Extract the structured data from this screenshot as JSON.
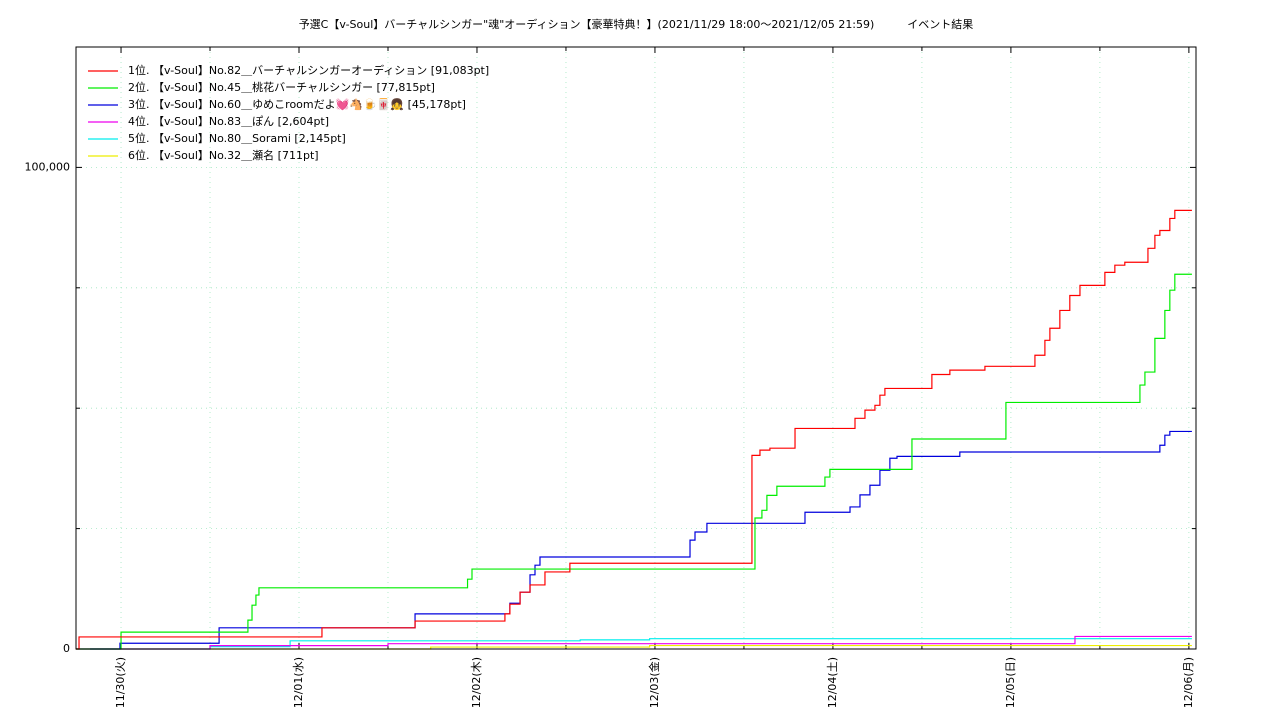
{
  "chart_data": {
    "type": "line",
    "step": true,
    "title": "予選C【v-Soul】バーチャルシンガー\"魂\"オーディション【豪華特典！】(2021/11/29 18:00～2021/12/05 21:59)　　　イベント結果",
    "xlim": [
      -0.253,
      6.04
    ],
    "xticks": [
      {
        "value": 0,
        "label": "11/30(火)"
      },
      {
        "value": 1,
        "label": "12/01(水)"
      },
      {
        "value": 2,
        "label": "12/02(木)"
      },
      {
        "value": 3,
        "label": "12/03(金)"
      },
      {
        "value": 4,
        "label": "12/04(土)"
      },
      {
        "value": 5,
        "label": "12/05(日)"
      },
      {
        "value": 6,
        "label": "12/06(月)"
      }
    ],
    "xminorticks": [
      0.5,
      1.5,
      2.5,
      3.5,
      4.5,
      5.5
    ],
    "ylim": [
      0,
      125000
    ],
    "yticks": [
      0,
      {
        "value": 100000,
        "label": "100,000"
      }
    ],
    "yminorticks": [
      25000,
      50000,
      75000
    ],
    "grid": true,
    "legend": "top-left",
    "series": [
      {
        "name": "1位. 【v-Soul】No.82＿バーチャルシンガーオーディション [91,083pt]",
        "color": "#ff0000",
        "x": [
          -0.253,
          -0.236,
          1.062,
          1.129,
          1.652,
          2.073,
          2.157,
          2.185,
          2.242,
          2.298,
          2.382,
          2.522,
          3.545,
          3.59,
          3.646,
          3.787,
          4.124,
          4.18,
          4.236,
          4.264,
          4.292,
          4.556,
          4.657,
          4.854,
          5.135,
          5.191,
          5.219,
          5.275,
          5.331,
          5.388,
          5.528,
          5.584,
          5.64,
          5.77,
          5.809,
          5.837,
          5.893,
          5.921,
          6.017
        ],
        "values": [
          0,
          2500,
          2500,
          4400,
          5800,
          5800,
          7300,
          9300,
          11800,
          13300,
          16000,
          17800,
          40200,
          41300,
          41700,
          45800,
          47900,
          49600,
          50600,
          52700,
          54100,
          57000,
          57900,
          58700,
          61000,
          64100,
          66600,
          70300,
          73400,
          75500,
          78200,
          79700,
          80300,
          83200,
          85900,
          86900,
          89400,
          91083,
          91083
        ]
      },
      {
        "name": "2位. 【v-Soul】No.45＿桃花バーチャルシンガー [77,815pt]",
        "color": "#00ee00",
        "x": [
          -0.253,
          0.0,
          0.713,
          0.736,
          0.758,
          0.775,
          1.947,
          1.972,
          3.562,
          3.601,
          3.629,
          3.685,
          3.955,
          3.983,
          4.444,
          4.972,
          5.725,
          5.753,
          5.809,
          5.865,
          5.893,
          5.921,
          6.017
        ],
        "values": [
          0,
          3500,
          6000,
          9100,
          11200,
          12700,
          14500,
          16600,
          27200,
          28800,
          31900,
          33800,
          35700,
          37300,
          43600,
          51200,
          54800,
          57500,
          64500,
          70300,
          74500,
          77815,
          77815
        ]
      },
      {
        "name": "3位. 【v-Soul】No.60＿ゆめこroomだよ💓🐴🍺🀄👧 [45,178pt]",
        "color": "#0000dd",
        "x": [
          -0.174,
          -0.006,
          0.551,
          1.652,
          2.185,
          2.242,
          2.298,
          2.326,
          2.354,
          3.197,
          3.225,
          3.292,
          3.843,
          4.096,
          4.152,
          4.208,
          4.264,
          4.32,
          4.36,
          4.713,
          5.837,
          5.865,
          5.893,
          6.017
        ],
        "values": [
          0,
          1200,
          4400,
          7300,
          9500,
          11800,
          15400,
          17400,
          19100,
          22600,
          24300,
          26100,
          28400,
          29500,
          32000,
          34000,
          37100,
          39600,
          40000,
          40900,
          42300,
          44400,
          45178,
          45178
        ]
      },
      {
        "name": "4位. 【v-Soul】No.83＿ぽん [2,604pt]",
        "color": "#ee00ee",
        "x": [
          -0.253,
          0.5,
          1.5,
          5.36,
          6.017
        ],
        "values": [
          0,
          700,
          1100,
          2604,
          2604
        ]
      },
      {
        "name": "5位. 【v-Soul】No.80＿Sorami [2,145pt]",
        "color": "#00eeee",
        "x": [
          -0.253,
          0.5,
          0.95,
          2.58,
          2.97,
          6.017
        ],
        "values": [
          0,
          500,
          1700,
          1900,
          2145,
          2145
        ]
      },
      {
        "name": "6位. 【v-Soul】No.32＿瀬名 [711pt]",
        "color": "#eeee00",
        "x": [
          -0.253,
          1.74,
          2.97,
          6.017
        ],
        "values": [
          0,
          400,
          711,
          711
        ]
      }
    ]
  }
}
